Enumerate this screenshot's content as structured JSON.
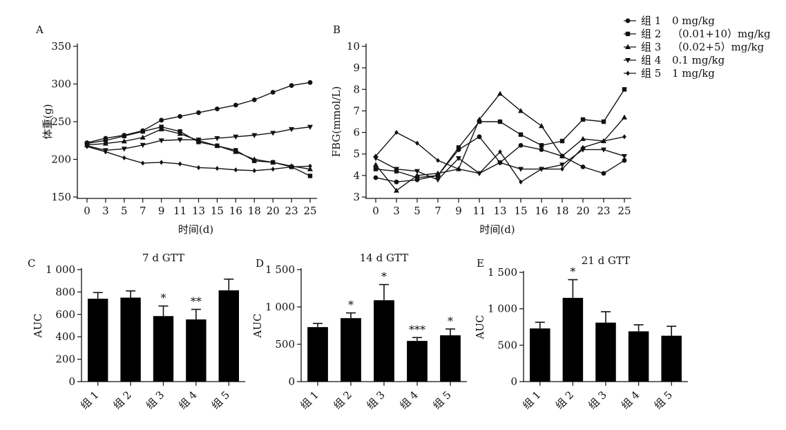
{
  "legend": {
    "placement": "top-right",
    "items": [
      {
        "marker": "circle",
        "label": "组 1",
        "dose": "0 mg/kg"
      },
      {
        "marker": "square",
        "label": "组 2",
        "dose": "（0.01+10）mg/kg"
      },
      {
        "marker": "triangle-up",
        "label": "组 3",
        "dose": "（0.02+5）mg/kg"
      },
      {
        "marker": "triangle-down",
        "label": "组 4",
        "dose": "0.1 mg/kg"
      },
      {
        "marker": "diamond",
        "label": "组 5",
        "dose": "1 mg/kg"
      }
    ]
  },
  "chart_data": [
    {
      "panel": "A",
      "type": "line",
      "xlabel": "时间(d)",
      "ylabel": "体重(g)",
      "ylim": [
        150,
        350
      ],
      "yticks": [
        150,
        200,
        250,
        300,
        350
      ],
      "x": [
        "0",
        "3",
        "5",
        "7",
        "9",
        "11",
        "13",
        "15",
        "16",
        "18",
        "20",
        "23",
        "25"
      ],
      "series": [
        {
          "name": "组 1",
          "marker": "circle",
          "values": [
            222,
            228,
            232,
            238,
            252,
            257,
            262,
            267,
            272,
            279,
            289,
            298,
            302
          ]
        },
        {
          "name": "组 2",
          "marker": "square",
          "values": [
            221,
            225,
            231,
            237,
            243,
            237,
            223,
            218,
            212,
            198,
            196,
            190,
            178
          ]
        },
        {
          "name": "组 3",
          "marker": "triangle-up",
          "values": [
            219,
            221,
            224,
            229,
            240,
            234,
            225,
            218,
            210,
            200,
            196,
            191,
            187
          ]
        },
        {
          "name": "组 4",
          "marker": "triangle-down",
          "values": [
            218,
            212,
            214,
            219,
            225,
            226,
            226,
            228,
            230,
            232,
            235,
            240,
            243
          ]
        },
        {
          "name": "组 5",
          "marker": "diamond",
          "values": [
            217,
            210,
            202,
            195,
            196,
            194,
            189,
            188,
            186,
            185,
            187,
            190,
            191
          ]
        }
      ]
    },
    {
      "panel": "B",
      "type": "line",
      "xlabel": "时间(d)",
      "ylabel": "FBG(mmol/L)",
      "ylim": [
        3,
        10
      ],
      "yticks": [
        3,
        4,
        5,
        6,
        7,
        8,
        9,
        10
      ],
      "x": [
        "0",
        "3",
        "5",
        "7",
        "9",
        "11",
        "13",
        "15",
        "16",
        "18",
        "20",
        "23",
        "25"
      ],
      "series": [
        {
          "name": "组 1",
          "marker": "circle",
          "values": [
            3.9,
            3.7,
            3.8,
            4.0,
            5.2,
            5.8,
            4.6,
            5.4,
            5.2,
            4.9,
            4.4,
            4.1,
            4.7
          ]
        },
        {
          "name": "组 2",
          "marker": "square",
          "values": [
            4.3,
            4.2,
            3.9,
            4.0,
            5.3,
            6.5,
            6.5,
            5.9,
            5.4,
            5.6,
            6.6,
            6.5,
            8.0
          ]
        },
        {
          "name": "组 3",
          "marker": "triangle-up",
          "values": [
            4.5,
            3.3,
            4.0,
            4.1,
            4.3,
            6.6,
            7.8,
            7.0,
            6.3,
            4.9,
            5.7,
            5.6,
            6.7
          ]
        },
        {
          "name": "组 4",
          "marker": "triangle-down",
          "values": [
            4.8,
            4.3,
            4.2,
            3.8,
            4.8,
            4.1,
            4.6,
            4.3,
            4.3,
            4.5,
            5.2,
            5.2,
            4.9
          ]
        },
        {
          "name": "组 5",
          "marker": "diamond",
          "values": [
            4.9,
            6.0,
            5.5,
            4.7,
            4.3,
            4.1,
            5.1,
            3.7,
            4.3,
            4.3,
            5.3,
            5.6,
            5.8
          ]
        }
      ]
    },
    {
      "panel": "C",
      "type": "bar",
      "title": "7 d GTT",
      "ylabel": "AUC",
      "ylim": [
        0,
        1000
      ],
      "yticks": [
        0,
        200,
        400,
        600,
        800,
        1000
      ],
      "ytick_labels": [
        "0",
        "200",
        "400",
        "600",
        "800",
        "1 000"
      ],
      "categories": [
        "组 1",
        "组 2",
        "组 3",
        "组 4",
        "组 5"
      ],
      "values": [
        740,
        750,
        585,
        555,
        815
      ],
      "errors": [
        55,
        60,
        90,
        90,
        100
      ],
      "annotations": [
        "",
        "",
        "*",
        "**",
        ""
      ]
    },
    {
      "panel": "D",
      "type": "bar",
      "title": "14 d GTT",
      "ylabel": "AUC",
      "ylim": [
        0,
        1500
      ],
      "yticks": [
        0,
        500,
        1000,
        1500
      ],
      "ytick_labels": [
        "0",
        "500",
        "1 000",
        "1 500"
      ],
      "categories": [
        "组 1",
        "组 2",
        "组 3",
        "组 4",
        "组 5"
      ],
      "values": [
        730,
        850,
        1090,
        545,
        620
      ],
      "errors": [
        50,
        70,
        210,
        45,
        85
      ],
      "annotations": [
        "",
        "*",
        "*",
        "***",
        "*"
      ]
    },
    {
      "panel": "E",
      "type": "bar",
      "title": "21 d GTT",
      "ylabel": "AUC",
      "ylim": [
        0,
        1500
      ],
      "yticks": [
        0,
        500,
        1000,
        1500
      ],
      "ytick_labels": [
        "0",
        "500",
        "1 000",
        "1 500"
      ],
      "categories": [
        "组 1",
        "组 2",
        "组 3",
        "组 4",
        "组 5"
      ],
      "values": [
        730,
        1150,
        810,
        690,
        630
      ],
      "errors": [
        85,
        250,
        150,
        90,
        130
      ],
      "annotations": [
        "",
        "*",
        "",
        "",
        ""
      ]
    }
  ]
}
